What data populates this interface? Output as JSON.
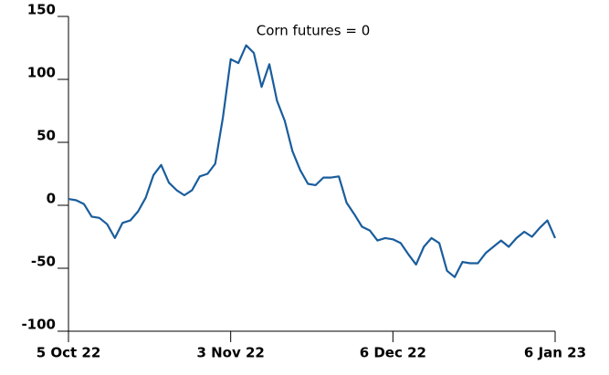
{
  "chart_data": {
    "type": "line",
    "annotation": "Corn futures = 0",
    "categories": [
      "5 Oct 22",
      null,
      null,
      null,
      null,
      null,
      null,
      null,
      null,
      null,
      null,
      null,
      null,
      null,
      null,
      null,
      null,
      null,
      null,
      null,
      null,
      "3 Nov 22",
      null,
      null,
      null,
      null,
      null,
      null,
      null,
      null,
      null,
      null,
      null,
      null,
      null,
      null,
      null,
      null,
      null,
      null,
      null,
      null,
      "6 Dec 22",
      null,
      null,
      null,
      null,
      null,
      null,
      null,
      null,
      null,
      null,
      null,
      null,
      null,
      null,
      null,
      null,
      null,
      null,
      null,
      null,
      "6 Jan 23"
    ],
    "series": [
      {
        "name": "Corn futures",
        "color": "#1a5d9c",
        "values": [
          5,
          4,
          1,
          -9,
          -10,
          -15,
          -26,
          -14,
          -12,
          -5,
          6,
          24,
          32,
          18,
          12,
          8,
          12,
          23,
          25,
          33,
          70,
          116,
          113,
          127,
          121,
          94,
          112,
          83,
          67,
          43,
          28,
          17,
          16,
          22,
          22,
          23,
          2,
          -7,
          -17,
          -20,
          -28,
          -26,
          -27,
          -30,
          -39,
          -47,
          -33,
          -26,
          -30,
          -52,
          -57,
          -45,
          -46,
          -46,
          -38,
          -33,
          -28,
          -33,
          -26,
          -21,
          -25,
          -18,
          -12,
          -26
        ]
      }
    ],
    "ylim": [
      -100,
      150
    ],
    "yticks": [
      -100,
      -50,
      0,
      50,
      100,
      150
    ],
    "grid": false
  }
}
